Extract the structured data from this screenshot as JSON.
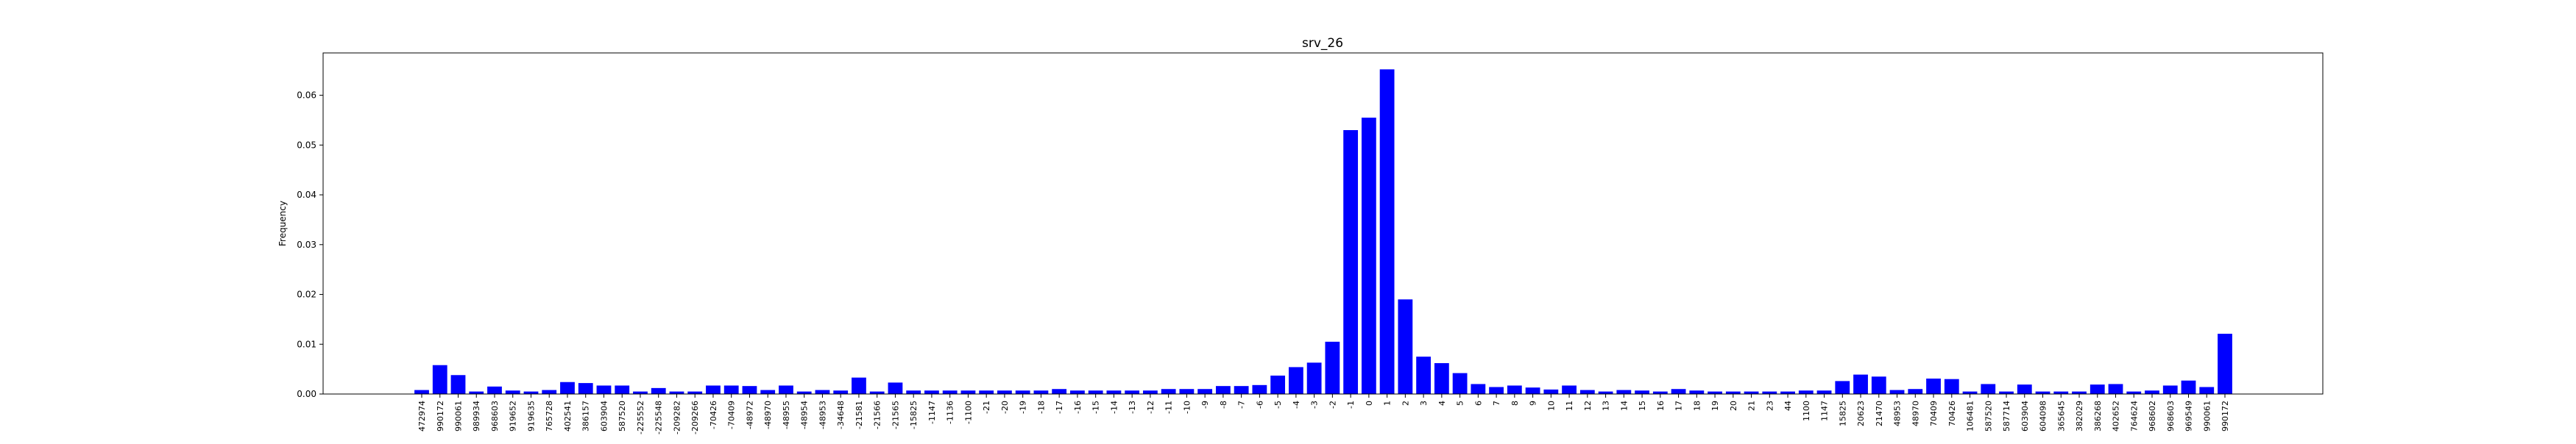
{
  "chart_data": {
    "type": "bar",
    "title": "srv_26",
    "xlabel": "",
    "ylabel": "Frequency",
    "ylim": [
      0,
      0.0685
    ],
    "yticks": [
      0.0,
      0.01,
      0.02,
      0.03,
      0.04,
      0.05,
      0.06
    ],
    "ytick_labels": [
      "0.00",
      "0.01",
      "0.02",
      "0.03",
      "0.04",
      "0.05",
      "0.06"
    ],
    "grid": false,
    "bar_color": "#0000ff",
    "categories": [
      "472974",
      "990172",
      "990061",
      "989934",
      "968603",
      "919652",
      "919635",
      "765728",
      "402541",
      "386157",
      "603904",
      "587520",
      "-225552",
      "-225548",
      "-209282",
      "-209266",
      "-70426",
      "-70409",
      "-48972",
      "-48970",
      "-48955",
      "-48954",
      "-48953",
      "-34648",
      "-21581",
      "-21566",
      "-21565",
      "-15825",
      "-1147",
      "-1136",
      "-1100",
      "-21",
      "-20",
      "-19",
      "-18",
      "-17",
      "-16",
      "-15",
      "-14",
      "-13",
      "-12",
      "-11",
      "-10",
      "-9",
      "-8",
      "-7",
      "-6",
      "-5",
      "-4",
      "-3",
      "-2",
      "-1",
      "0",
      "1",
      "2",
      "3",
      "4",
      "5",
      "6",
      "7",
      "8",
      "9",
      "10",
      "11",
      "12",
      "13",
      "14",
      "15",
      "16",
      "17",
      "18",
      "19",
      "20",
      "21",
      "23",
      "44",
      "1100",
      "1147",
      "15825",
      "20623",
      "21470",
      "48953",
      "48970",
      "70409",
      "70426",
      "106481",
      "587520",
      "587714",
      "603904",
      "604098",
      "365645",
      "382029",
      "386268",
      "402652",
      "764624",
      "968602",
      "968603",
      "969549",
      "990061",
      "990172"
    ],
    "values": [
      0.0008,
      0.0058,
      0.0038,
      0.0005,
      0.0015,
      0.0007,
      0.0005,
      0.0008,
      0.0024,
      0.0022,
      0.0017,
      0.0017,
      0.0005,
      0.0012,
      0.0005,
      0.0005,
      0.0017,
      0.0017,
      0.0016,
      0.0008,
      0.0017,
      0.0005,
      0.0008,
      0.0007,
      0.0033,
      0.0005,
      0.0023,
      0.0007,
      0.0007,
      0.0007,
      0.0007,
      0.0007,
      0.0007,
      0.0007,
      0.0007,
      0.001,
      0.0007,
      0.0007,
      0.0007,
      0.0007,
      0.0007,
      0.001,
      0.001,
      0.001,
      0.0016,
      0.0016,
      0.0018,
      0.0037,
      0.0054,
      0.0063,
      0.0105,
      0.053,
      0.0555,
      0.0652,
      0.019,
      0.0075,
      0.0062,
      0.0042,
      0.002,
      0.0014,
      0.0017,
      0.0013,
      0.0009,
      0.0017,
      0.0008,
      0.0005,
      0.0008,
      0.0007,
      0.0005,
      0.001,
      0.0007,
      0.0005,
      0.0005,
      0.0005,
      0.0005,
      0.0005,
      0.0007,
      0.0007,
      0.0026,
      0.0039,
      0.0035,
      0.0008,
      0.001,
      0.0031,
      0.003,
      0.0005,
      0.002,
      0.0005,
      0.0019,
      0.0005,
      0.0005,
      0.0005,
      0.0019,
      0.002,
      0.0005,
      0.0007,
      0.0017,
      0.0027,
      0.0014,
      0.0121
    ]
  }
}
